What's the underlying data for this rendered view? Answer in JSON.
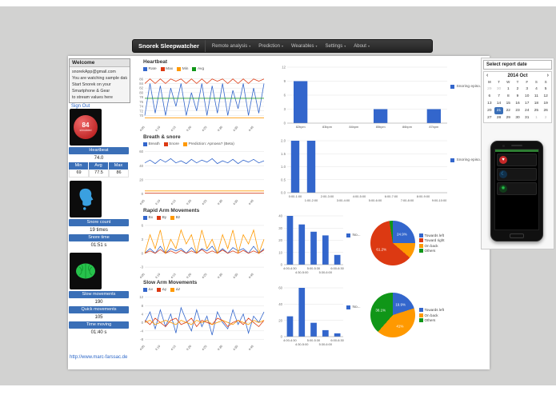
{
  "navbar": {
    "brand": "Snorek Sleepwatcher",
    "menus": [
      {
        "label": "Remote analysis"
      },
      {
        "label": "Prediction"
      },
      {
        "label": "Wearables"
      },
      {
        "label": "Settings"
      },
      {
        "label": "About"
      }
    ]
  },
  "welcome": {
    "title": "Welcome",
    "lines": [
      "snorekApp@gmail.com",
      "You are watching sample data",
      "Start Snorek on your",
      "Smartphone & Gear",
      "to stream values here"
    ],
    "sign_out": "Sign Out"
  },
  "metrics": {
    "heart": {
      "icon_value": "84",
      "icon_caption": "simulated",
      "button_label": "Heartbeat",
      "current_value": "74.0",
      "min_label": "Min",
      "avg_label": "Avg",
      "max_label": "Max",
      "min_value": "69",
      "avg_value": "77.5",
      "max_value": "86"
    },
    "snore": {
      "count_label": "Snore count",
      "count_value": "19 times",
      "time_label": "Snore time",
      "time_value": "01:51 s"
    },
    "movement": {
      "slow_label": "Slow movements",
      "slow_value": "190",
      "quick_label": "Quick movements",
      "quick_value": "105",
      "time_label": "Time moving",
      "time_value": "01:40 s"
    }
  },
  "report": {
    "select_date_label": "Select report date",
    "calendar": {
      "title": "2014 Oct",
      "prev": "‹",
      "next": "›",
      "day_headers": [
        "M",
        "T",
        "W",
        "T",
        "F",
        "S",
        "S"
      ],
      "weeks": [
        [
          "29",
          "30",
          "1",
          "2",
          "3",
          "4",
          "5"
        ],
        [
          "6",
          "7",
          "8",
          "9",
          "10",
          "11",
          "12"
        ],
        [
          "13",
          "14",
          "15",
          "16",
          "17",
          "18",
          "19"
        ],
        [
          "20",
          "21",
          "22",
          "23",
          "24",
          "25",
          "26"
        ],
        [
          "27",
          "28",
          "29",
          "30",
          "31",
          "1",
          "2"
        ]
      ],
      "outside_cells": [
        [
          0,
          0
        ],
        [
          0,
          1
        ],
        [
          4,
          5
        ],
        [
          4,
          6
        ]
      ],
      "selected": {
        "week": 3,
        "col": 1
      }
    }
  },
  "footer": {
    "link": "http://www.marc-farssac.de"
  },
  "accent_colors": {
    "primary_blue": "#3a6fb7",
    "chart_blue": "#3366cc",
    "chart_red": "#dc3912",
    "chart_orange": "#ff9900",
    "chart_green": "#109618"
  },
  "chart_data": [
    {
      "id": "heartbeat-line",
      "type": "line",
      "title": "Heartbeat",
      "x_labels": [
        "4:05",
        "4:10",
        "4:15",
        "4:20",
        "4:25",
        "4:30",
        "4:35",
        "4:40"
      ],
      "ylim": [
        67,
        88
      ],
      "yticks": [
        "70",
        "72",
        "74",
        "76",
        "78",
        "80",
        "82",
        "84",
        "86"
      ],
      "series": [
        {
          "name": "Rate",
          "color": "#3366cc",
          "values": [
            70,
            84,
            71,
            83,
            70,
            82,
            74,
            84,
            70,
            80,
            72,
            84,
            70,
            83,
            71,
            84,
            70,
            81,
            73,
            84,
            70,
            82,
            71,
            84
          ]
        },
        {
          "name": "Max",
          "color": "#dc3912",
          "values": [
            84,
            86,
            84,
            86,
            84,
            86,
            85,
            86,
            84,
            86,
            84,
            86,
            84,
            86,
            85,
            86,
            84,
            86,
            84,
            86,
            84,
            86,
            85,
            86
          ]
        },
        {
          "name": "Min",
          "color": "#ff9900",
          "const": 69
        },
        {
          "name": "Avg",
          "color": "#109618",
          "const": 77.5
        }
      ]
    },
    {
      "id": "snoring-by-bpm-bar",
      "type": "bar",
      "categories": [
        "82bpm",
        "83bpm",
        "84bpm",
        "85bpm",
        "86bpm",
        "87bpm"
      ],
      "values": [
        9,
        0,
        0,
        3,
        0,
        3
      ],
      "ylim": [
        0,
        12
      ],
      "yticks": [
        "0",
        "3",
        "6",
        "9",
        "12"
      ],
      "bar_color": "#3366cc",
      "legend": "Snoring episo...",
      "stagger_labels": false
    },
    {
      "id": "breath-snore-line",
      "type": "line",
      "title": "Breath & snore",
      "x_labels": [
        "4:05",
        "4:10",
        "4:15",
        "4:20",
        "4:25",
        "4:30",
        "4:35",
        "4:40"
      ],
      "ylim": [
        -3,
        63
      ],
      "yticks": [
        "0",
        "20",
        "40",
        "60"
      ],
      "series": [
        {
          "name": "Breath",
          "color": "#3366cc",
          "values": [
            44,
            48,
            43,
            49,
            45,
            50,
            44,
            47,
            43,
            49,
            44,
            48,
            45,
            50,
            43,
            47,
            44,
            49,
            43,
            48,
            45,
            49,
            44,
            47
          ]
        },
        {
          "name": "Snore",
          "color": "#dc3912",
          "const": 1
        },
        {
          "name": "Prediction: Apnoea? (Beta)",
          "color": "#ff9900",
          "const": 4
        }
      ]
    },
    {
      "id": "snoring-by-hour-bar",
      "type": "bar",
      "categories": [
        "0:00-1:00",
        "1:00-2:00",
        "2:00-3:00",
        "3:00-4:00",
        "4:00-5:00",
        "5:00-6:00",
        "6:00-7:00",
        "7:00-8:00",
        "8:00-9:00",
        "9:00-10:00"
      ],
      "values": [
        2,
        2,
        0,
        0,
        0,
        0,
        0,
        0,
        0,
        0
      ],
      "ylim": [
        0,
        2
      ],
      "yticks": [
        "0.0",
        "0.5",
        "1.0",
        "1.5",
        "2.0"
      ],
      "bar_color": "#3366cc",
      "legend": "Snoring episo...",
      "stagger_labels": true
    },
    {
      "id": "rapid-arm-movements-line",
      "type": "line",
      "title": "Rapid Arm Movements",
      "x_labels": [
        "4:05",
        "4:10",
        "4:15",
        "4:20",
        "4:25",
        "4:30",
        "4:35",
        "4:40"
      ],
      "ylim": [
        -3.5,
        6.5
      ],
      "yticks": [
        "-3",
        "0",
        "3",
        "6"
      ],
      "series": [
        {
          "name": "Bx",
          "color": "#3366cc",
          "values": [
            0,
            1,
            0,
            1.5,
            0,
            1,
            0.5,
            1,
            0,
            1.2,
            0,
            1,
            0.5,
            1.5,
            0,
            1,
            0,
            1.2,
            0.5,
            1,
            0,
            1.5,
            0,
            1
          ]
        },
        {
          "name": "By",
          "color": "#dc3912",
          "values": [
            0,
            0.5,
            0,
            0.8,
            0,
            0.5,
            0,
            0.6,
            0,
            0.5,
            0,
            0.8,
            0,
            0.5,
            0,
            0.7,
            0,
            0.5,
            0,
            0.6,
            0,
            0.5,
            0,
            0.7
          ]
        },
        {
          "name": "Bz",
          "color": "#ff9900",
          "values": [
            0,
            4,
            1,
            5,
            0,
            3,
            1,
            5,
            2,
            4,
            0,
            5,
            1,
            3,
            0,
            4,
            1,
            5,
            0,
            4,
            2,
            5,
            0,
            3
          ]
        }
      ]
    },
    {
      "id": "rapid-arm-movements-bar",
      "type": "bar",
      "categories": [
        "4:00-4:30",
        "4:30-5:00",
        "5:00-5:30",
        "5:30-6:00",
        "6:00-6:30"
      ],
      "values": [
        40,
        33,
        27,
        24,
        8
      ],
      "ylim": [
        0,
        40
      ],
      "yticks": [
        "0",
        "10",
        "20",
        "30",
        "40"
      ],
      "bar_color": "#3366cc",
      "legend": "No...",
      "stagger_labels": true
    },
    {
      "id": "sleep-position-pie-rapid",
      "type": "pie",
      "slices": [
        {
          "name": "Towards left",
          "value": 24.9,
          "color": "#3366cc",
          "label": "24.9%"
        },
        {
          "name": "On back",
          "value": 11.4,
          "color": "#ff9900",
          "label": ""
        },
        {
          "name": "Towards right",
          "value": 61.2,
          "color": "#dc3912",
          "label": "61.2%"
        },
        {
          "name": "Others",
          "value": 2.5,
          "color": "#109618",
          "label": ""
        }
      ],
      "legend": [
        {
          "name": "Towards left",
          "color": "#3366cc"
        },
        {
          "name": "Toward right",
          "color": "#dc3912"
        },
        {
          "name": "On back",
          "color": "#ff9900"
        },
        {
          "name": "Others",
          "color": "#109618"
        }
      ]
    },
    {
      "id": "slow-arm-movements-line",
      "type": "line",
      "title": "Slow Arm Movements",
      "x_labels": [
        "4:05",
        "4:10",
        "4:15",
        "4:20",
        "4:25",
        "4:30",
        "4:35",
        "4:40"
      ],
      "ylim": [
        -9,
        13
      ],
      "yticks": [
        "-8",
        "-4",
        "0",
        "4",
        "8",
        "12"
      ],
      "series": [
        {
          "name": "Δx",
          "color": "#3366cc",
          "values": [
            0,
            5,
            -3,
            6,
            -2,
            4,
            -5,
            7,
            1,
            -4,
            6,
            -2,
            3,
            -6,
            5,
            0,
            -3,
            6,
            -1,
            4,
            -5,
            3,
            0,
            5
          ]
        },
        {
          "name": "Δy",
          "color": "#dc3912",
          "values": [
            1,
            -1,
            2,
            0,
            -2,
            1,
            2,
            -1,
            0,
            2,
            -2,
            1,
            0,
            -1,
            2,
            1,
            -2,
            0,
            1,
            -1,
            2,
            0,
            -2,
            1
          ]
        },
        {
          "name": "Δz",
          "color": "#ff9900",
          "values": [
            0,
            1,
            -1,
            0,
            1,
            0,
            -1,
            1,
            0,
            -1,
            1,
            0,
            1,
            -1,
            0,
            1,
            0,
            -1,
            1,
            0,
            -1,
            1,
            0,
            1
          ]
        }
      ]
    },
    {
      "id": "slow-arm-movements-bar",
      "type": "bar",
      "categories": [
        "4:00-4:30",
        "4:30-5:00",
        "5:00-5:30",
        "5:30-6:00",
        "6:00-6:30"
      ],
      "values": [
        25,
        60,
        17,
        8,
        4
      ],
      "ylim": [
        0,
        60
      ],
      "yticks": [
        "0",
        "20",
        "40",
        "60"
      ],
      "bar_color": "#3366cc",
      "legend": "No...",
      "stagger_labels": true
    },
    {
      "id": "sleep-position-pie-slow",
      "type": "pie",
      "slices": [
        {
          "name": "Towards left",
          "value": 19.9,
          "color": "#3366cc",
          "label": "19.9%"
        },
        {
          "name": "On back",
          "value": 41.0,
          "color": "#ff9900",
          "label": "41%"
        },
        {
          "name": "Others",
          "value": 38.1,
          "color": "#109618",
          "label": "38.1%"
        }
      ],
      "legend": [
        {
          "name": "Towards left",
          "color": "#3366cc"
        },
        {
          "name": "On back",
          "color": "#ff9900"
        },
        {
          "name": "Others",
          "color": "#109618"
        }
      ]
    }
  ]
}
